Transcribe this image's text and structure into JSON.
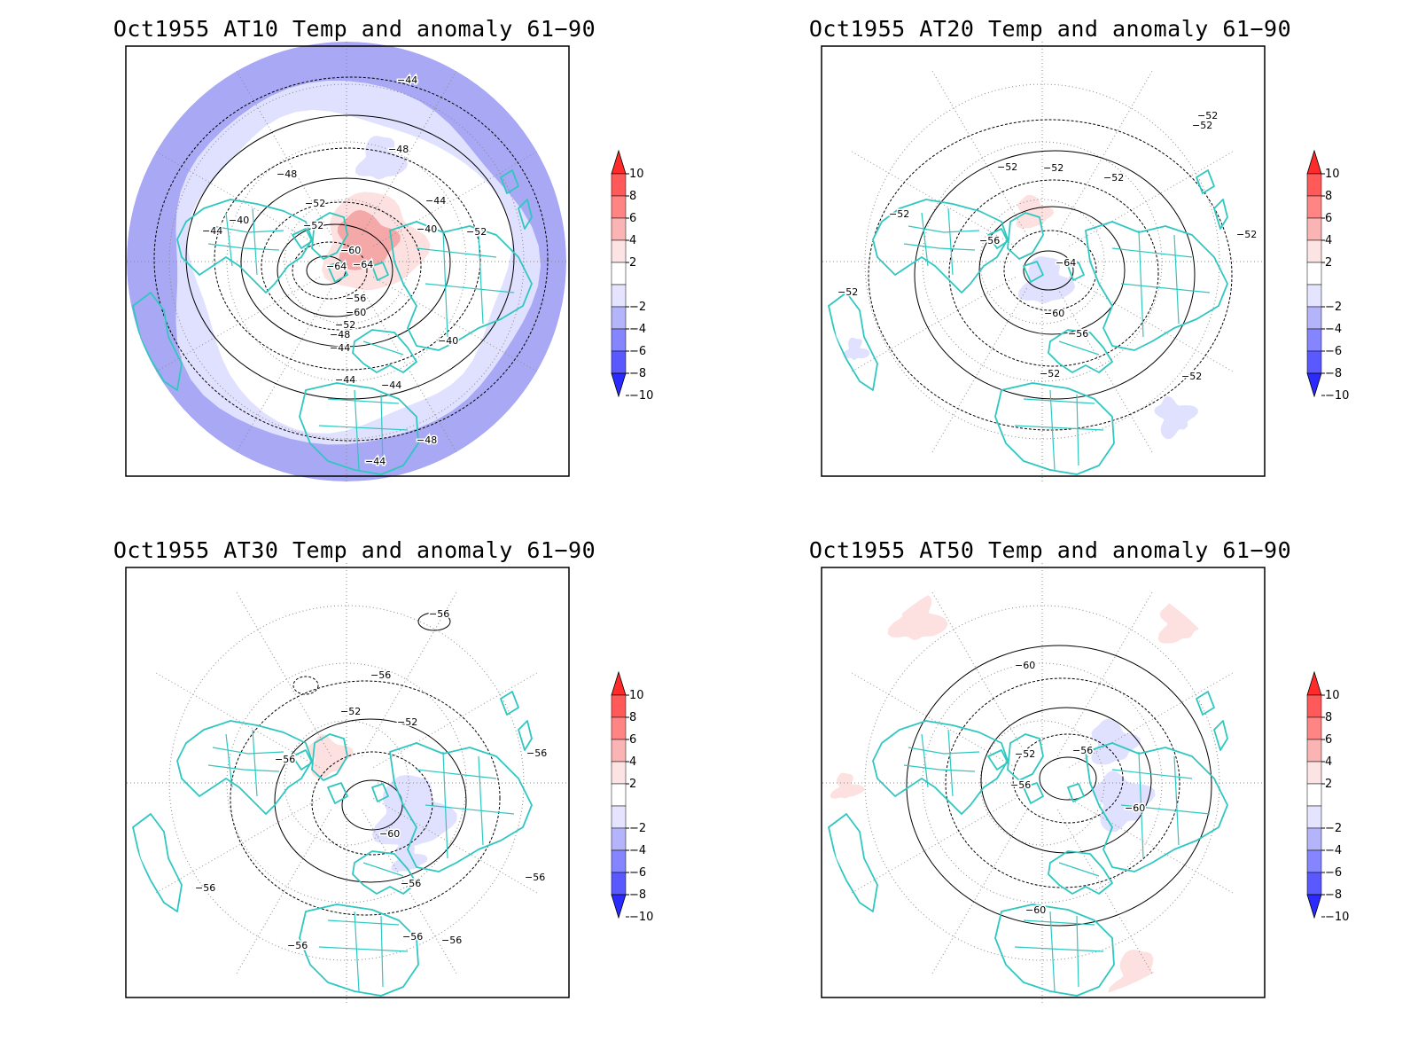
{
  "colors": {
    "coast": "#2fc7c0",
    "contour": "#000000",
    "grid": "#888888",
    "blue_light": "#e0e0ff",
    "blue_mid": "#a8a8f5",
    "red_light": "#fde0e0",
    "red_mid": "#f4a8a8"
  },
  "colorbar": {
    "labels": [
      "10",
      "8",
      "6",
      "4",
      "2",
      "−2",
      "−4",
      "−6",
      "−8",
      "−10"
    ],
    "colors": [
      "#ff2b2b",
      "#ff5959",
      "#ff8585",
      "#fbb4b4",
      "#fde4e4",
      "#ffffff",
      "#e4e4ff",
      "#b4b4fb",
      "#8585ff",
      "#5959ff",
      "#2b2bff"
    ]
  },
  "panels": [
    {
      "title": "Oct1955 AT10 Temp and anomaly 61−90",
      "contour_labels": [
        "−44",
        "−48",
        "−48",
        "−52",
        "−40",
        "−44",
        "−52",
        "−60",
        "−40",
        "−44",
        "−52",
        "−64",
        "−64",
        "−56",
        "−60",
        "−52",
        "−48",
        "−44",
        "−40",
        "−44",
        "−44",
        "−48",
        "−44"
      ]
    },
    {
      "title": "Oct1955 AT20 Temp and anomaly 61−90",
      "contour_labels": [
        "−52",
        "−52",
        "−52",
        "−52",
        "−52",
        "−52",
        "−56",
        "−64",
        "−60",
        "−56",
        "−52",
        "−52",
        "−52",
        "−52"
      ]
    },
    {
      "title": "Oct1955 AT30 Temp and anomaly 61−90",
      "contour_labels": [
        "−56",
        "−56",
        "−52",
        "−52",
        "−56",
        "−56",
        "−60",
        "−56",
        "−56",
        "−56",
        "−56",
        "−56",
        "−56"
      ]
    },
    {
      "title": "Oct1955 AT50 Temp and anomaly 61−90",
      "contour_labels": [
        "−60",
        "−52",
        "−56",
        "−56",
        "−60",
        "−60"
      ]
    }
  ]
}
